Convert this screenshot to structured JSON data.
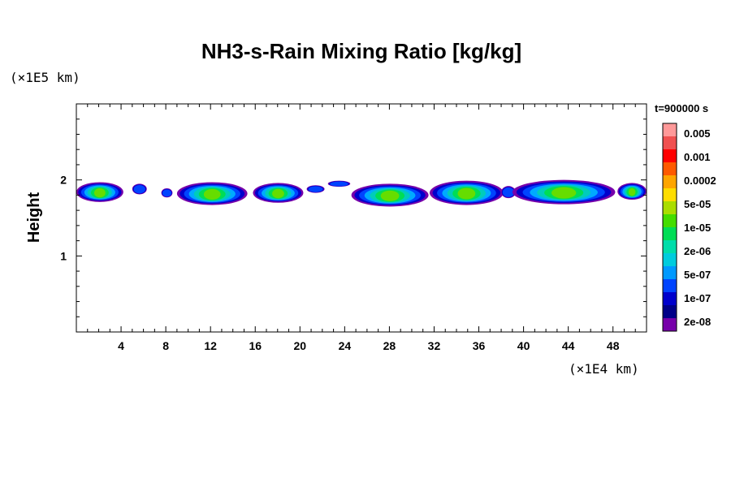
{
  "chart_data": {
    "type": "heatmap",
    "title": "NH3-s-Rain Mixing Ratio [kg/kg]",
    "ylabel": "Height",
    "y_unit": "(×1E5 km)",
    "x_unit": "(×1E4 km)",
    "time_label": "t=900000 s",
    "x_range": [
      0,
      51
    ],
    "y_range": [
      0,
      3
    ],
    "x_ticks": [
      "4",
      "8",
      "12",
      "16",
      "20",
      "24",
      "28",
      "32",
      "36",
      "40",
      "44",
      "48"
    ],
    "x_tick_values": [
      4,
      8,
      12,
      16,
      20,
      24,
      28,
      32,
      36,
      40,
      44,
      48
    ],
    "y_ticks": [
      "1",
      "2"
    ],
    "y_tick_values": [
      1,
      2
    ],
    "colorbar": {
      "levels": [
        {
          "label": "0.005",
          "color": "#f08080"
        },
        {
          "label": "0.001",
          "color": "#ff0000"
        },
        {
          "label": "0.0002",
          "color": "#ff8c00"
        },
        {
          "label": "5e-05",
          "color": "#dddd00"
        },
        {
          "label": "1e-05",
          "color": "#66dd00"
        },
        {
          "label": "2e-06",
          "color": "#00dd55"
        },
        {
          "label": "5e-07",
          "color": "#00ccbb"
        },
        {
          "label": "1e-07",
          "color": "#1e90ff"
        },
        {
          "label": "2e-08",
          "color": "#0000cc"
        }
      ],
      "band_colors": [
        "#ff9999",
        "#f05050",
        "#ff0000",
        "#ff5a00",
        "#ffa500",
        "#ffdd00",
        "#aadd00",
        "#44dd00",
        "#00dd55",
        "#00ddaa",
        "#00ccdd",
        "#0099ff",
        "#0044ff",
        "#0000cc",
        "#000088",
        "#7700aa"
      ]
    },
    "cells": [
      {
        "x0": 0.0,
        "x1": 4.2,
        "yc": 1.84,
        "h": 0.26
      },
      {
        "x0": 5.0,
        "x1": 6.3,
        "yc": 1.88,
        "h": 0.14
      },
      {
        "x0": 7.6,
        "x1": 8.6,
        "yc": 1.83,
        "h": 0.12
      },
      {
        "x0": 9.0,
        "x1": 15.3,
        "yc": 1.82,
        "h": 0.3
      },
      {
        "x0": 15.8,
        "x1": 20.3,
        "yc": 1.83,
        "h": 0.26
      },
      {
        "x0": 20.6,
        "x1": 22.2,
        "yc": 1.88,
        "h": 0.1
      },
      {
        "x0": 22.5,
        "x1": 24.5,
        "yc": 1.95,
        "h": 0.08
      },
      {
        "x0": 24.6,
        "x1": 31.5,
        "yc": 1.8,
        "h": 0.3
      },
      {
        "x0": 31.6,
        "x1": 38.2,
        "yc": 1.83,
        "h": 0.32
      },
      {
        "x0": 38.0,
        "x1": 39.3,
        "yc": 1.84,
        "h": 0.16
      },
      {
        "x0": 39.0,
        "x1": 48.2,
        "yc": 1.84,
        "h": 0.32
      },
      {
        "x0": 48.4,
        "x1": 51.0,
        "yc": 1.85,
        "h": 0.22
      }
    ]
  }
}
